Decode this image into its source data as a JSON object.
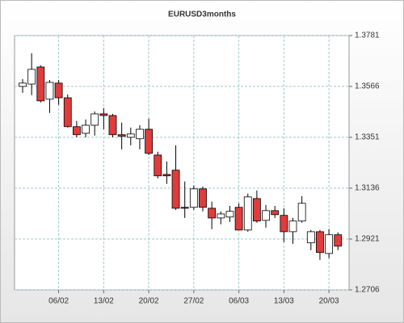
{
  "chart_data": {
    "type": "candlestick",
    "title": "EURUSD3months",
    "categories": [
      null,
      null,
      null,
      null,
      "06/02",
      null,
      null,
      null,
      null,
      "13/02",
      null,
      null,
      null,
      null,
      "20/02",
      null,
      null,
      null,
      null,
      "27/02",
      null,
      null,
      null,
      null,
      "06/03",
      null,
      null,
      null,
      null,
      "13/03",
      null,
      null,
      null,
      null,
      "20/03",
      null
    ],
    "open": [
      1.3566,
      1.3576,
      1.3648,
      1.3512,
      1.358,
      1.3518,
      1.3396,
      1.3368,
      1.3402,
      1.345,
      1.3443,
      1.3362,
      1.3351,
      1.3345,
      1.3385,
      1.3276,
      1.3194,
      1.3212,
      1.3055,
      1.3055,
      1.3133,
      1.3051,
      1.301,
      1.3014,
      1.3055,
      1.2959,
      1.3092,
      1.3,
      1.3041,
      1.3021,
      1.2952,
      1.2997,
      1.2905,
      1.2952,
      1.286,
      1.2939
    ],
    "high": [
      1.3597,
      1.3706,
      1.3655,
      1.3593,
      1.3593,
      1.3532,
      1.342,
      1.3426,
      1.346,
      1.3474,
      1.345,
      1.3413,
      1.3392,
      1.3402,
      1.343,
      1.329,
      1.3249,
      1.3317,
      1.3164,
      1.3147,
      1.3143,
      1.3079,
      1.3038,
      1.3061,
      1.3072,
      1.3113,
      1.3126,
      1.3065,
      1.3061,
      1.3051,
      1.301,
      1.3102,
      1.2959,
      1.2959,
      1.2963,
      1.2949
    ],
    "low": [
      1.3539,
      1.3529,
      1.3498,
      1.3454,
      1.3488,
      1.3392,
      1.3351,
      1.3351,
      1.3358,
      1.3385,
      1.3351,
      1.33,
      1.3317,
      1.33,
      1.3276,
      1.3177,
      1.3154,
      1.3044,
      1.301,
      1.3044,
      1.3038,
      1.2963,
      1.2983,
      1.2993,
      1.2959,
      1.2952,
      1.299,
      1.2969,
      1.301,
      1.2908,
      1.2901,
      1.299,
      1.2874,
      1.2833,
      1.284,
      1.2874
    ],
    "close": [
      1.358,
      1.3638,
      1.3505,
      1.3583,
      1.3518,
      1.3396,
      1.3362,
      1.3402,
      1.345,
      1.3443,
      1.3362,
      1.3355,
      1.3365,
      1.3385,
      1.3283,
      1.3188,
      1.3188,
      1.3051,
      1.3051,
      1.3133,
      1.3055,
      1.301,
      1.3027,
      1.3038,
      1.2959,
      1.3099,
      1.2997,
      1.3041,
      1.3024,
      1.2952,
      1.2997,
      1.3072,
      1.2952,
      1.2864,
      1.2939,
      1.2891
    ],
    "up_color": "#ffffff",
    "down_color": "#e03c3c",
    "grid": true,
    "ylim": [
      1.2706,
      1.3781
    ],
    "yticks": [
      1.2706,
      1.2921,
      1.3136,
      1.3351,
      1.3566,
      1.3781
    ]
  }
}
